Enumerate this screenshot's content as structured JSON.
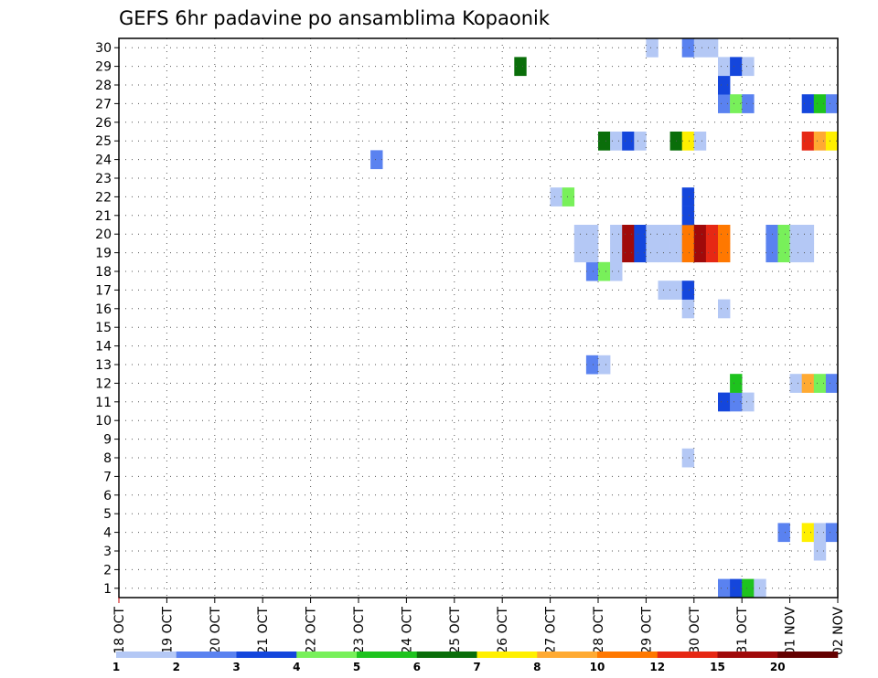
{
  "chart_data": {
    "type": "heatmap",
    "title": "GEFS 6hr padavine po ansamblima Kopaonik",
    "x_tick_labels": [
      "18 OCT",
      "19 OCT",
      "20 OCT",
      "21 OCT",
      "22 OCT",
      "23 OCT",
      "24 OCT",
      "25 OCT",
      "26 OCT",
      "27 OCT",
      "28 OCT",
      "29 OCT",
      "30 OCT",
      "31 OCT",
      "01 NOV",
      "02 NOV"
    ],
    "y_tick_labels": [
      "1",
      "2",
      "3",
      "4",
      "5",
      "6",
      "7",
      "8",
      "9",
      "10",
      "11",
      "12",
      "13",
      "14",
      "15",
      "16",
      "17",
      "18",
      "19",
      "20",
      "21",
      "22",
      "23",
      "24",
      "25",
      "26",
      "27",
      "28",
      "29",
      "30"
    ],
    "x_unit": "6-hour steps from 18 OCT 00Z",
    "xlim": [
      0,
      60
    ],
    "ylim": [
      0.5,
      30.5
    ],
    "grid": "dotted",
    "colorbar": {
      "labels": [
        "1",
        "2",
        "3",
        "4",
        "5",
        "6",
        "7",
        "8",
        "10",
        "12",
        "15",
        "20"
      ],
      "colors": [
        "#b4c8f5",
        "#5a82f0",
        "#1446dc",
        "#78f05a",
        "#1ec31e",
        "#0a6e0a",
        "#fff000",
        "#ffaa32",
        "#ff7800",
        "#e62814",
        "#a00a0a",
        "#640000"
      ]
    },
    "cells": [
      {
        "member": 1,
        "step": 50,
        "value": 2
      },
      {
        "member": 1,
        "step": 51,
        "value": 3
      },
      {
        "member": 1,
        "step": 52,
        "value": 5
      },
      {
        "member": 1,
        "step": 53,
        "value": 1
      },
      {
        "member": 3,
        "step": 58,
        "value": 1
      },
      {
        "member": 4,
        "step": 55,
        "value": 2
      },
      {
        "member": 4,
        "step": 57,
        "value": 7
      },
      {
        "member": 4,
        "step": 58,
        "value": 1
      },
      {
        "member": 4,
        "step": 59,
        "value": 2
      },
      {
        "member": 8,
        "step": 47,
        "value": 1
      },
      {
        "member": 11,
        "step": 50,
        "value": 3
      },
      {
        "member": 11,
        "step": 51,
        "value": 2
      },
      {
        "member": 11,
        "step": 52,
        "value": 1
      },
      {
        "member": 12,
        "step": 51,
        "value": 5
      },
      {
        "member": 12,
        "step": 56,
        "value": 1
      },
      {
        "member": 12,
        "step": 57,
        "value": 8
      },
      {
        "member": 12,
        "step": 58,
        "value": 4
      },
      {
        "member": 12,
        "step": 59,
        "value": 2
      },
      {
        "member": 13,
        "step": 39,
        "value": 2
      },
      {
        "member": 13,
        "step": 40,
        "value": 1
      },
      {
        "member": 16,
        "step": 47,
        "value": 1
      },
      {
        "member": 16,
        "step": 50,
        "value": 1
      },
      {
        "member": 17,
        "step": 45,
        "value": 1
      },
      {
        "member": 17,
        "step": 46,
        "value": 1
      },
      {
        "member": 17,
        "step": 47,
        "value": 3
      },
      {
        "member": 18,
        "step": 39,
        "value": 2
      },
      {
        "member": 18,
        "step": 40,
        "value": 4
      },
      {
        "member": 18,
        "step": 41,
        "value": 1
      },
      {
        "member": 19,
        "step": 38,
        "value": 1
      },
      {
        "member": 19,
        "step": 39,
        "value": 1
      },
      {
        "member": 19,
        "step": 41,
        "value": 1
      },
      {
        "member": 19,
        "step": 42,
        "value": 15
      },
      {
        "member": 19,
        "step": 43,
        "value": 3
      },
      {
        "member": 19,
        "step": 44,
        "value": 1
      },
      {
        "member": 19,
        "step": 45,
        "value": 1
      },
      {
        "member": 19,
        "step": 46,
        "value": 1
      },
      {
        "member": 19,
        "step": 47,
        "value": 10
      },
      {
        "member": 19,
        "step": 48,
        "value": 15
      },
      {
        "member": 19,
        "step": 49,
        "value": 12
      },
      {
        "member": 19,
        "step": 50,
        "value": 10
      },
      {
        "member": 19,
        "step": 54,
        "value": 2
      },
      {
        "member": 19,
        "step": 55,
        "value": 4
      },
      {
        "member": 19,
        "step": 56,
        "value": 1
      },
      {
        "member": 19,
        "step": 57,
        "value": 1
      },
      {
        "member": 20,
        "step": 38,
        "value": 1
      },
      {
        "member": 20,
        "step": 39,
        "value": 1
      },
      {
        "member": 20,
        "step": 41,
        "value": 1
      },
      {
        "member": 20,
        "step": 42,
        "value": 15
      },
      {
        "member": 20,
        "step": 43,
        "value": 3
      },
      {
        "member": 20,
        "step": 44,
        "value": 1
      },
      {
        "member": 20,
        "step": 45,
        "value": 1
      },
      {
        "member": 20,
        "step": 46,
        "value": 1
      },
      {
        "member": 20,
        "step": 47,
        "value": 10
      },
      {
        "member": 20,
        "step": 48,
        "value": 15
      },
      {
        "member": 20,
        "step": 49,
        "value": 12
      },
      {
        "member": 20,
        "step": 50,
        "value": 10
      },
      {
        "member": 20,
        "step": 54,
        "value": 2
      },
      {
        "member": 20,
        "step": 55,
        "value": 4
      },
      {
        "member": 20,
        "step": 56,
        "value": 1
      },
      {
        "member": 20,
        "step": 57,
        "value": 1
      },
      {
        "member": 21,
        "step": 47,
        "value": 3
      },
      {
        "member": 22,
        "step": 36,
        "value": 1
      },
      {
        "member": 22,
        "step": 37,
        "value": 4
      },
      {
        "member": 22,
        "step": 47,
        "value": 3
      },
      {
        "member": 24,
        "step": 21,
        "value": 2
      },
      {
        "member": 25,
        "step": 40,
        "value": 6
      },
      {
        "member": 25,
        "step": 41,
        "value": 1
      },
      {
        "member": 25,
        "step": 42,
        "value": 3
      },
      {
        "member": 25,
        "step": 43,
        "value": 1
      },
      {
        "member": 25,
        "step": 46,
        "value": 6
      },
      {
        "member": 25,
        "step": 47,
        "value": 7
      },
      {
        "member": 25,
        "step": 48,
        "value": 1
      },
      {
        "member": 25,
        "step": 57,
        "value": 12
      },
      {
        "member": 25,
        "step": 58,
        "value": 8
      },
      {
        "member": 25,
        "step": 59,
        "value": 7
      },
      {
        "member": 27,
        "step": 50,
        "value": 2
      },
      {
        "member": 27,
        "step": 51,
        "value": 4
      },
      {
        "member": 27,
        "step": 52,
        "value": 2
      },
      {
        "member": 27,
        "step": 57,
        "value": 3
      },
      {
        "member": 27,
        "step": 58,
        "value": 5
      },
      {
        "member": 27,
        "step": 59,
        "value": 2
      },
      {
        "member": 28,
        "step": 50,
        "value": 3
      },
      {
        "member": 29,
        "step": 33,
        "value": 6
      },
      {
        "member": 29,
        "step": 50,
        "value": 1
      },
      {
        "member": 29,
        "step": 51,
        "value": 3
      },
      {
        "member": 29,
        "step": 52,
        "value": 1
      },
      {
        "member": 30,
        "step": 44,
        "value": 1
      },
      {
        "member": 30,
        "step": 47,
        "value": 2
      },
      {
        "member": 30,
        "step": 48,
        "value": 1
      },
      {
        "member": 30,
        "step": 49,
        "value": 1
      }
    ]
  }
}
